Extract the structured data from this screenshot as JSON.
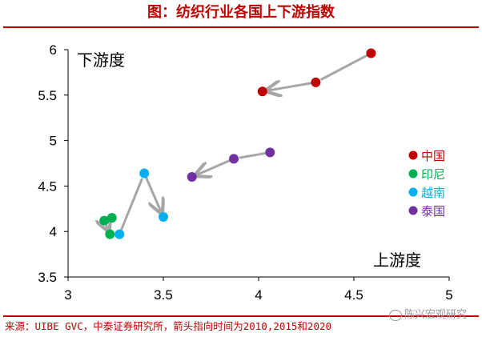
{
  "title": "图：纺织行业各国上下游指数",
  "source": "来源：UIBE GVC，中泰证券研究所，箭头指向时间为2010,2015和2020",
  "watermark": "陈兴宏观研究",
  "colors": {
    "title": "#c00000",
    "arrow": "#a6a6a6"
  },
  "chart_data": {
    "type": "scatter",
    "xlabel": "上游度",
    "ylabel": "下游度",
    "xlim": [
      3,
      5
    ],
    "ylim": [
      3.5,
      6
    ],
    "xticks": [
      "3",
      "3.5",
      "4",
      "4.5",
      "5"
    ],
    "yticks": [
      "3.5",
      "4",
      "4.5",
      "5",
      "5.5",
      "6"
    ],
    "grid": false,
    "legend_position": "right",
    "series": [
      {
        "name": "中国",
        "color": "#c00000",
        "points": [
          [
            4.59,
            5.96
          ],
          [
            4.3,
            5.64
          ],
          [
            4.02,
            5.54
          ]
        ]
      },
      {
        "name": "印尼",
        "color": "#00b050",
        "points": [
          [
            3.23,
            4.15
          ],
          [
            3.19,
            4.12
          ],
          [
            3.22,
            3.97
          ]
        ]
      },
      {
        "name": "越南",
        "color": "#00b0f0",
        "points": [
          [
            3.27,
            3.97
          ],
          [
            3.4,
            4.64
          ],
          [
            3.5,
            4.16
          ]
        ]
      },
      {
        "name": "泰国",
        "color": "#7030a0",
        "points": [
          [
            4.06,
            4.87
          ],
          [
            3.87,
            4.8
          ],
          [
            3.65,
            4.6
          ]
        ]
      }
    ]
  }
}
